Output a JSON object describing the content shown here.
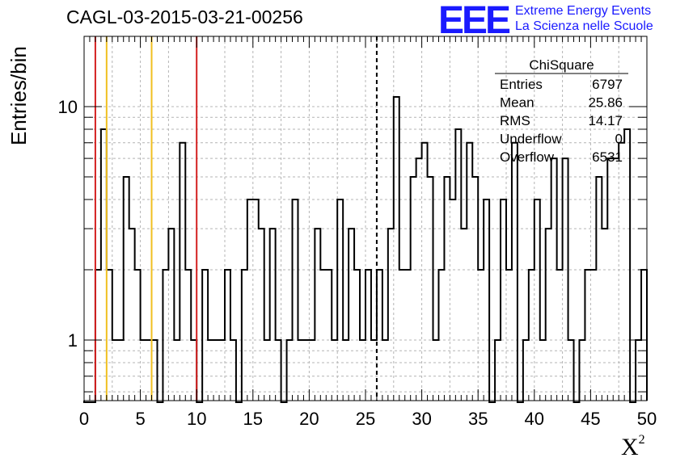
{
  "title": "CAGL-03-2015-03-21-00256",
  "logo": {
    "text": "EEE",
    "line1": "Extreme Energy Events",
    "line2": "La Scienza nelle Scuole",
    "color": "#1a1aff"
  },
  "chart_data": {
    "type": "bar",
    "title": "CAGL-03-2015-03-21-00256",
    "xlabel_base": "X",
    "xlabel_sup": "2",
    "ylabel": "Entries/bin",
    "xlim": [
      0,
      50
    ],
    "ylim": [
      0.55,
      20
    ],
    "yscale": "log",
    "bin_width": 0.5,
    "grid": true,
    "x_ticks": [
      "0",
      "5",
      "10",
      "15",
      "20",
      "25",
      "30",
      "35",
      "40",
      "45",
      "50"
    ],
    "y_ticks": [
      "1",
      "10"
    ],
    "values": [
      0,
      0,
      2,
      8,
      2,
      1,
      1,
      5,
      3,
      2,
      1,
      1,
      1,
      0,
      2,
      3,
      1,
      7,
      2,
      1,
      0,
      2,
      1,
      1,
      1,
      2,
      1,
      0,
      2,
      4,
      4,
      3,
      1,
      3,
      1,
      0,
      1,
      4,
      1,
      1,
      1,
      3,
      2,
      2,
      1,
      4,
      1,
      3,
      2,
      1,
      2,
      1,
      2,
      1,
      3,
      11,
      2,
      2,
      5,
      6,
      7,
      5,
      1,
      2,
      5,
      4,
      8,
      3,
      7,
      5,
      2,
      4,
      0,
      1,
      4,
      2,
      7,
      0,
      1,
      2,
      4,
      1,
      3,
      6,
      2,
      6,
      1,
      0,
      1,
      2,
      2,
      5,
      3,
      6,
      6,
      7,
      8,
      0,
      1,
      2
    ],
    "vlines": [
      {
        "x": 1,
        "color": "#d42020",
        "style": "solid"
      },
      {
        "x": 2,
        "color": "#f0c020",
        "style": "solid"
      },
      {
        "x": 6,
        "color": "#f0c020",
        "style": "solid"
      },
      {
        "x": 10,
        "color": "#d42020",
        "style": "solid"
      },
      {
        "x": 26,
        "color": "#000000",
        "style": "dashed"
      }
    ],
    "stats": {
      "title": "ChiSquare",
      "rows": [
        {
          "label": "Entries",
          "value": "6797"
        },
        {
          "label": "Mean",
          "value": "25.86"
        },
        {
          "label": "RMS",
          "value": "14.17"
        },
        {
          "label": "Underflow",
          "value": "0"
        },
        {
          "label": "Overflow",
          "value": "6531"
        }
      ]
    }
  }
}
